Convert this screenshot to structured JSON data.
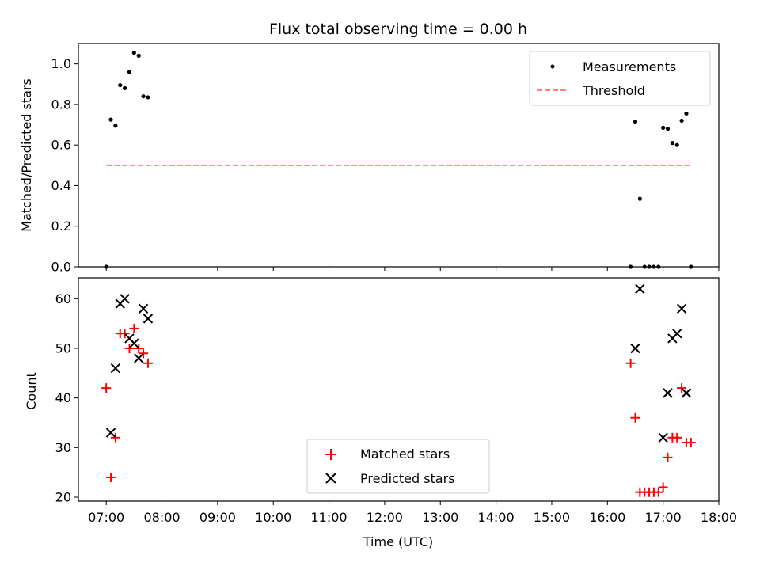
{
  "chart_data": [
    {
      "type": "scatter",
      "title": "Flux total observing time = 0.00 h",
      "xlabel": "",
      "ylabel": "Matched/Predicted stars",
      "xlim": [
        "06:30",
        "18:00"
      ],
      "ylim": [
        0,
        1.1
      ],
      "yticks": [
        "0.0",
        "0.2",
        "0.4",
        "0.6",
        "0.8",
        "1.0"
      ],
      "yticks_values": [
        0,
        0.2,
        0.4,
        0.6,
        0.8,
        1.0
      ],
      "legend_position": "top-right",
      "series": [
        {
          "name": "Measurements",
          "kind": "points",
          "color": "#000000",
          "x": [
            "07:00",
            "07:05",
            "07:10",
            "07:15",
            "07:20",
            "07:25",
            "07:30",
            "07:35",
            "07:40",
            "07:45",
            "16:25",
            "16:30",
            "16:35",
            "16:40",
            "16:45",
            "16:50",
            "16:55",
            "17:00",
            "17:05",
            "17:10",
            "17:15",
            "17:20",
            "17:25",
            "17:30"
          ],
          "y": [
            0.0,
            0.725,
            0.695,
            0.895,
            0.88,
            0.96,
            1.055,
            1.04,
            0.84,
            0.835,
            0.0,
            0.715,
            0.335,
            0.0,
            0.0,
            0.0,
            0.0,
            0.685,
            0.68,
            0.61,
            0.6,
            0.72,
            0.755,
            0.0
          ]
        },
        {
          "name": "Threshold",
          "kind": "dashed-line",
          "color": "#ff7f7f",
          "x": [
            "07:00",
            "17:30"
          ],
          "y": [
            0.5,
            0.5
          ]
        }
      ]
    },
    {
      "type": "scatter",
      "title": "",
      "xlabel": "Time (UTC)",
      "ylabel": "Count",
      "xlim": [
        "06:30",
        "18:00"
      ],
      "ylim": [
        19.2,
        64.2
      ],
      "yticks": [
        "20",
        "30",
        "40",
        "50",
        "60"
      ],
      "yticks_values": [
        20,
        30,
        40,
        50,
        60
      ],
      "xticks": [
        "07:00",
        "08:00",
        "09:00",
        "10:00",
        "11:00",
        "12:00",
        "13:00",
        "14:00",
        "15:00",
        "16:00",
        "17:00",
        "18:00"
      ],
      "legend_position": "lower-center",
      "series": [
        {
          "name": "Matched stars",
          "marker": "plus",
          "color": "#ff0000",
          "x": [
            "07:00",
            "07:05",
            "07:10",
            "07:15",
            "07:20",
            "07:25",
            "07:30",
            "07:35",
            "07:40",
            "07:45",
            "16:25",
            "16:30",
            "16:35",
            "16:40",
            "16:45",
            "16:50",
            "16:55",
            "17:00",
            "17:05",
            "17:10",
            "17:15",
            "17:20",
            "17:25",
            "17:30"
          ],
          "y": [
            42,
            24,
            32,
            53,
            53,
            50,
            54,
            50,
            49,
            47,
            47,
            36,
            21,
            21,
            21,
            21,
            21,
            22,
            28,
            32,
            32,
            42,
            31,
            31
          ]
        },
        {
          "name": "Predicted stars",
          "marker": "x",
          "color": "#000000",
          "x": [
            "07:05",
            "07:10",
            "07:15",
            "07:20",
            "07:25",
            "07:30",
            "07:35",
            "07:40",
            "07:45",
            "16:30",
            "16:35",
            "17:00",
            "17:05",
            "17:10",
            "17:15",
            "17:20",
            "17:25"
          ],
          "y": [
            33,
            46,
            59,
            60,
            52,
            51,
            48,
            58,
            56,
            50,
            62,
            32,
            41,
            52,
            53,
            58,
            41
          ]
        }
      ]
    }
  ]
}
